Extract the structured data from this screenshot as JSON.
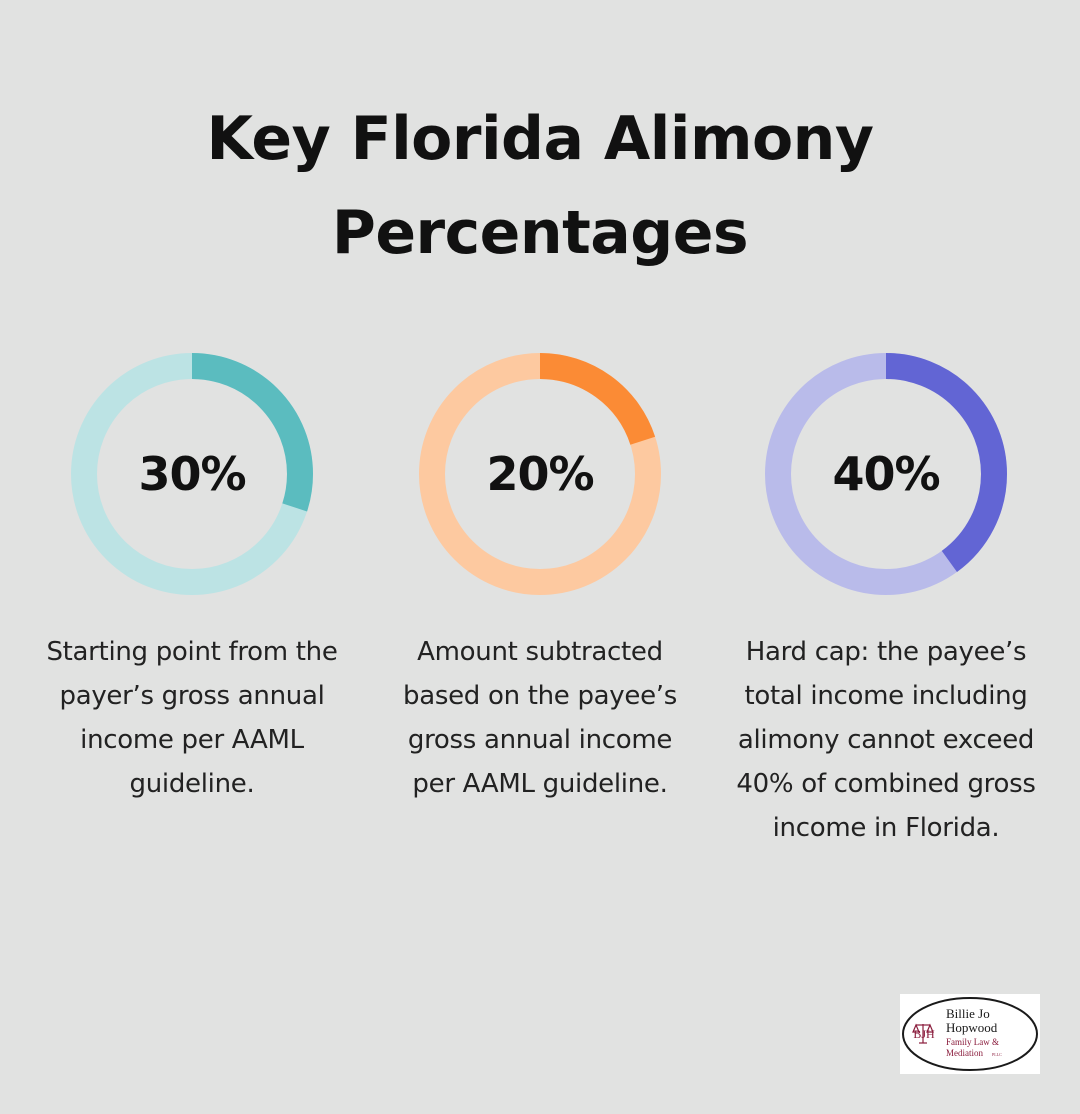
{
  "title": "Key Florida Alimony Percentages",
  "chart_data": [
    {
      "type": "pie",
      "values": [
        30,
        70
      ],
      "label": "30%",
      "description": "Starting point from the payer’s gross annual income per AAML guideline.",
      "colors": {
        "fill": "#5bbcbf",
        "track": "#bce3e4"
      }
    },
    {
      "type": "pie",
      "values": [
        20,
        80
      ],
      "label": "20%",
      "description": "Amount subtracted based on the payee’s gross annual income per AAML guideline.",
      "colors": {
        "fill": "#fb8b35",
        "track": "#fdc9a0"
      }
    },
    {
      "type": "pie",
      "values": [
        40,
        60
      ],
      "label": "40%",
      "description": "Hard cap: the payee’s total income including alimony cannot exceed 40% of combined gross income in Florida.",
      "colors": {
        "fill": "#6265d4",
        "track": "#b9bbea"
      }
    }
  ],
  "logo": {
    "monogram": "BJH",
    "name_line1": "Billie Jo",
    "name_line2": "Hopwood",
    "tagline_line1": "Family Law &",
    "tagline_line2": "Mediation",
    "suffix": "PLLC",
    "colors": {
      "text": "#1a1a1a",
      "accent": "#8a1c3c"
    }
  }
}
